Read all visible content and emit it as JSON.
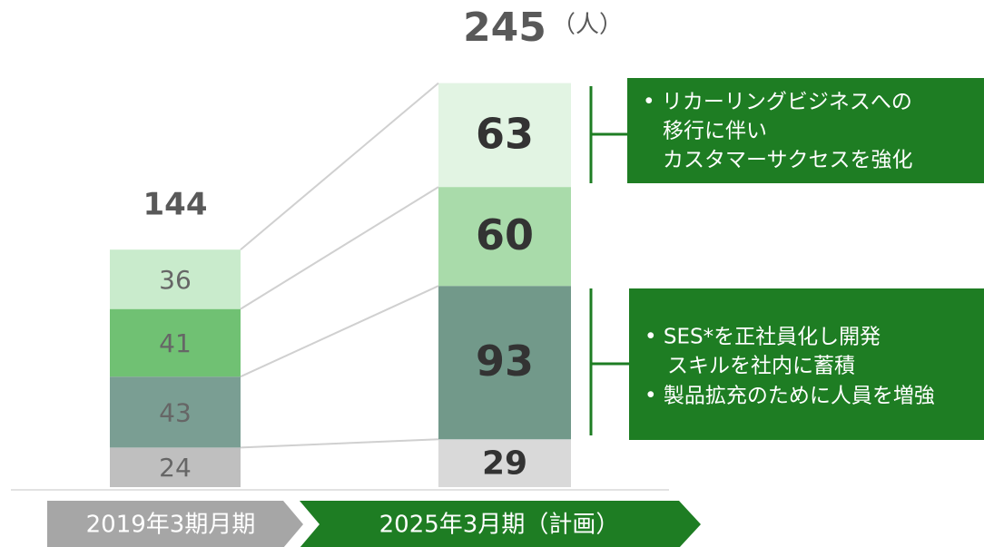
{
  "chart_data": {
    "type": "stacked-bar",
    "categories": [
      "2019年3期月期",
      "2025年3月期（計画）"
    ],
    "unit": "（人）",
    "series": [
      {
        "colors": [
          "#bfbfbf",
          "#d9d9d9"
        ],
        "values": [
          24,
          29
        ]
      },
      {
        "colors": [
          "#7a9e93",
          "#72998a"
        ],
        "values": [
          43,
          93
        ]
      },
      {
        "colors": [
          "#70c173",
          "#a9dbaa"
        ],
        "values": [
          41,
          60
        ]
      },
      {
        "colors": [
          "#c9ebcc",
          "#e2f4e3"
        ],
        "values": [
          36,
          63
        ]
      }
    ],
    "totals": [
      144,
      245
    ],
    "annotations": [
      [
        "• リカーリングビジネスへの",
        "移行に伴い",
        "カスタマーサクセスを強化"
      ],
      [
        "• SES*を正社員化し開発",
        "スキルを社内に蓄積",
        "• 製品拡充のために人員を増強"
      ]
    ]
  }
}
